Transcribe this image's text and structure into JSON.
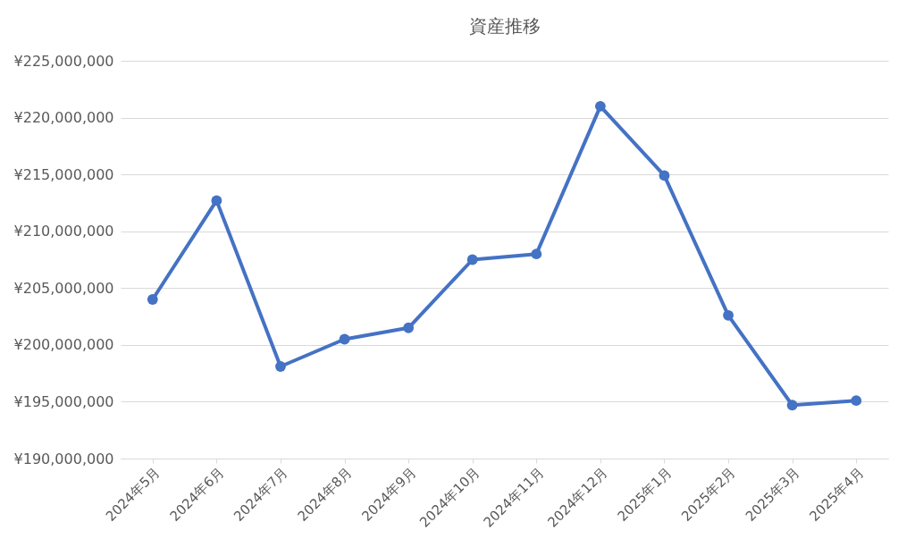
{
  "chart_data": {
    "type": "line",
    "title": "資産推移",
    "categories": [
      "2024年5月",
      "2024年6月",
      "2024年7月",
      "2024年8月",
      "2024年9月",
      "2024年10月",
      "2024年11月",
      "2024年12月",
      "2025年1月",
      "2025年2月",
      "2025年3月",
      "2025年4月"
    ],
    "series": [
      {
        "color": "#4472c4",
        "values": [
          204000000,
          212700000,
          198100000,
          200500000,
          201500000,
          207500000,
          208000000,
          221000000,
          214900000,
          202600000,
          194700000,
          195100000
        ]
      }
    ],
    "ylim": [
      190000000,
      225000000
    ],
    "yticks": [
      {
        "value": 190000000,
        "label": "¥190,000,000"
      },
      {
        "value": 195000000,
        "label": "¥195,000,000"
      },
      {
        "value": 200000000,
        "label": "¥200,000,000"
      },
      {
        "value": 205000000,
        "label": "¥205,000,000"
      },
      {
        "value": 210000000,
        "label": "¥210,000,000"
      },
      {
        "value": 215000000,
        "label": "¥215,000,000"
      },
      {
        "value": 220000000,
        "label": "¥220,000,000"
      },
      {
        "value": 225000000,
        "label": "¥225,000,000"
      }
    ],
    "grid": "y",
    "marker": "circle",
    "line_style": "solid"
  }
}
